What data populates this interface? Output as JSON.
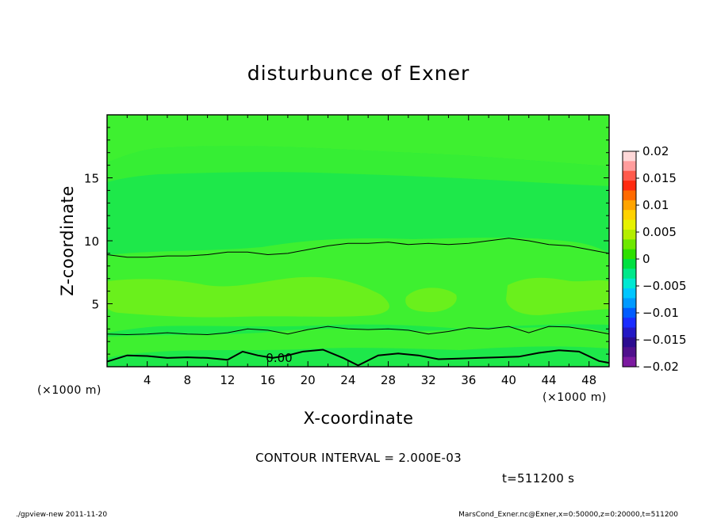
{
  "chart_data": {
    "type": "heatmap",
    "title": "disturbunce of Exner",
    "xlabel": "X-coordinate",
    "ylabel": "Z-coordinate",
    "x_unit_label": "(×1000 m)",
    "y_unit_label": "(×1000 m)",
    "xlim": [
      0,
      50
    ],
    "ylim": [
      0,
      20
    ],
    "x_ticks": [
      4,
      8,
      12,
      16,
      20,
      24,
      28,
      32,
      36,
      40,
      44,
      48
    ],
    "y_ticks": [
      5,
      10,
      15
    ],
    "contour_interval_text": "CONTOUR INTERVAL = 2.000E-03",
    "time_text": "t=511200 s",
    "contour_label": "0.00",
    "contour_lines": [
      {
        "level": 0.0,
        "x": [
          0,
          2,
          4,
          6,
          8,
          10,
          12,
          13.5,
          15,
          16.5,
          18,
          19.5,
          21.5,
          23.5,
          25,
          27,
          29,
          31,
          33,
          35,
          37,
          39,
          41,
          43,
          45,
          47,
          49,
          50
        ],
        "z": [
          0.4,
          0.9,
          0.85,
          0.7,
          0.75,
          0.7,
          0.55,
          1.2,
          0.9,
          0.7,
          0.9,
          1.2,
          1.35,
          0.7,
          0.1,
          0.9,
          1.05,
          0.9,
          0.6,
          0.65,
          0.7,
          0.75,
          0.8,
          1.1,
          1.3,
          1.2,
          0.45,
          0.3
        ]
      },
      {
        "level": 0.002,
        "x": [
          0,
          2,
          4,
          6,
          8,
          10,
          12,
          14,
          16,
          18,
          20,
          22,
          24,
          26,
          28,
          30,
          32,
          34,
          36,
          38,
          40,
          42,
          44,
          46,
          48,
          50
        ],
        "z": [
          2.6,
          2.55,
          2.6,
          2.7,
          2.6,
          2.55,
          2.7,
          3.0,
          2.9,
          2.6,
          2.95,
          3.2,
          3.0,
          2.95,
          3.0,
          2.9,
          2.6,
          2.8,
          3.1,
          3.0,
          3.2,
          2.7,
          3.2,
          3.15,
          2.9,
          2.6
        ]
      },
      {
        "level": 0.002,
        "x": [
          0,
          2,
          4,
          6,
          8,
          10,
          12,
          14,
          16,
          18,
          20,
          22,
          24,
          26,
          28,
          30,
          32,
          34,
          36,
          38,
          40,
          42,
          44,
          46,
          48,
          50
        ],
        "z": [
          8.9,
          8.7,
          8.7,
          8.8,
          8.8,
          8.9,
          9.1,
          9.1,
          8.9,
          9.0,
          9.3,
          9.6,
          9.8,
          9.8,
          9.9,
          9.7,
          9.8,
          9.7,
          9.8,
          10.0,
          10.2,
          10.0,
          9.7,
          9.6,
          9.3,
          9.0
        ]
      }
    ],
    "colorbar": {
      "labels": [
        "0.02",
        "0.015",
        "0.01",
        "0.005",
        "0",
        "−0.005",
        "−0.01",
        "−0.015",
        "−0.02"
      ],
      "colors_top_to_bottom": [
        "#ffd8d8",
        "#ff9c9c",
        "#ff5a4c",
        "#ff2a10",
        "#ff6a00",
        "#ffa400",
        "#ffd200",
        "#e6f200",
        "#b4ee00",
        "#6ee800",
        "#2ee000",
        "#00e040",
        "#00e88a",
        "#00e8d2",
        "#00c6ff",
        "#009aff",
        "#005cff",
        "#1a2cff",
        "#2418c4",
        "#2c0c90",
        "#50108c",
        "#7c1aa0"
      ]
    },
    "field_colors": {
      "green_base": "#1ee84a",
      "green_mid": "#3ef030",
      "green_high": "#5ef020",
      "yellow_green": "#7ef410"
    }
  },
  "footer": {
    "left": "./gpview-new   2011-11-20",
    "right": "MarsCond_Exner.nc@Exner,x=0:50000,z=0:20000,t=511200"
  }
}
